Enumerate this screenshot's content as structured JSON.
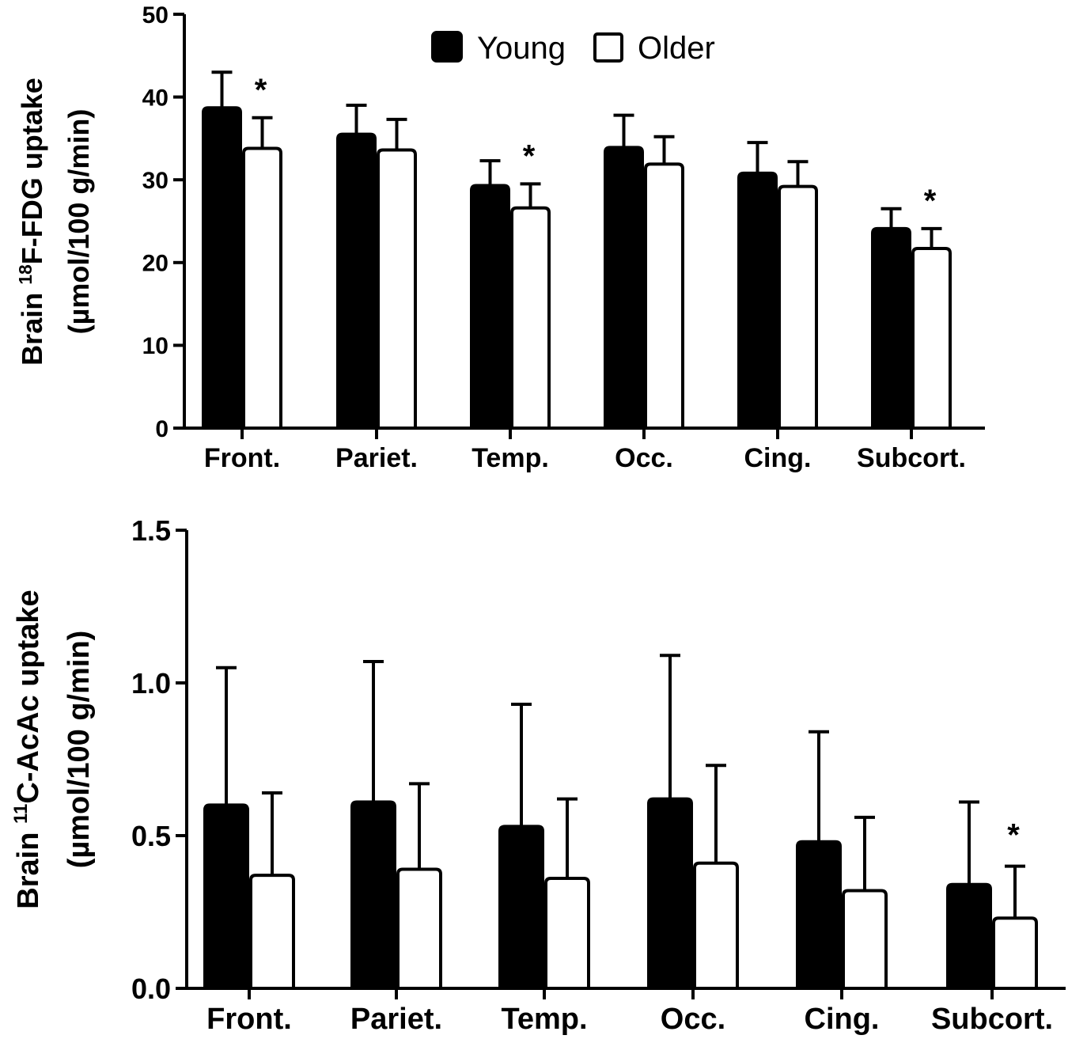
{
  "legend": {
    "series_a": "Young",
    "series_b": "Older"
  },
  "chart_data": [
    {
      "type": "bar",
      "ylabel_line1": "Brain ",
      "ylabel_sup": "18",
      "ylabel_line1_rest": "F-FDG uptake",
      "ylabel_line2": "(µmol/100 g/min)",
      "categories": [
        "Front.",
        "Pariet.",
        "Temp.",
        "Occ.",
        "Cing.",
        "Subcort."
      ],
      "ylim": [
        0,
        50
      ],
      "yticks": [
        "0",
        "10",
        "20",
        "30",
        "40",
        "50"
      ],
      "series": [
        {
          "name": "Young",
          "values": [
            38.7,
            35.5,
            29.3,
            33.9,
            30.8,
            24.1
          ],
          "errors": [
            4.3,
            3.5,
            3.0,
            3.9,
            3.7,
            2.4
          ]
        },
        {
          "name": "Older",
          "values": [
            33.8,
            33.6,
            26.6,
            31.9,
            29.2,
            21.7
          ],
          "errors": [
            3.7,
            3.7,
            2.9,
            3.3,
            3.0,
            2.4
          ]
        }
      ],
      "significance": [
        "*",
        "",
        "*",
        "",
        "",
        "*"
      ]
    },
    {
      "type": "bar",
      "ylabel_line1": "Brain ",
      "ylabel_sup": "11",
      "ylabel_line1_rest": "C-AcAc uptake",
      "ylabel_line2": "(µmol/100 g/min)",
      "categories": [
        "Front.",
        "Pariet.",
        "Temp.",
        "Occ.",
        "Cing.",
        "Subcort."
      ],
      "ylim": [
        0,
        1.5
      ],
      "yticks": [
        "0.0",
        "0.5",
        "1.0",
        "1.5"
      ],
      "series": [
        {
          "name": "Young",
          "values": [
            0.6,
            0.61,
            0.53,
            0.62,
            0.48,
            0.34
          ],
          "errors": [
            0.45,
            0.46,
            0.4,
            0.47,
            0.36,
            0.27
          ]
        },
        {
          "name": "Older",
          "values": [
            0.37,
            0.39,
            0.36,
            0.41,
            0.32,
            0.23
          ],
          "errors": [
            0.27,
            0.28,
            0.26,
            0.32,
            0.24,
            0.17
          ]
        }
      ],
      "significance": [
        "",
        "",
        "",
        "",
        "",
        "*"
      ]
    }
  ]
}
